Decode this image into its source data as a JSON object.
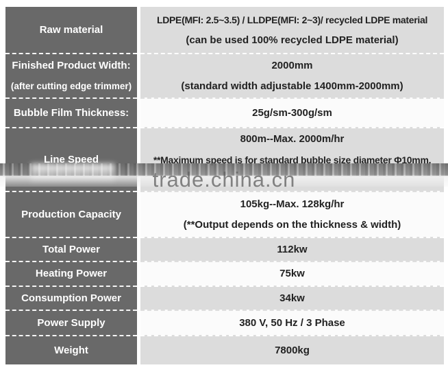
{
  "table": {
    "rows": [
      {
        "label": [
          "Raw material"
        ],
        "value": [
          "LDPE(MFI: 2.5~3.5) / LLDPE(MFI: 2~3)/ recycled LDPE material",
          "(can be used 100% recycled LDPE material)"
        ]
      },
      {
        "label": [
          "Finished Product Width:",
          "(after cutting edge trimmer)"
        ],
        "value": [
          "2000mm",
          "(standard width adjustable 1400mm-2000mm)"
        ]
      },
      {
        "label": [
          "Bubble Film Thickness:"
        ],
        "value": [
          "25g/sm-300g/sm"
        ]
      },
      {
        "label": [
          "Line Speed"
        ],
        "value": [
          "800m--Max. 2000m/hr",
          "**Maximum speed is for standard bubble size diameter Φ10mm."
        ]
      },
      {
        "label": [
          "Production Capacity"
        ],
        "value": [
          "105kg--Max. 128kg/hr",
          "(**Output depends on the thickness & width)"
        ]
      },
      {
        "label": [
          "Total Power"
        ],
        "value": [
          "112kw"
        ]
      },
      {
        "label": [
          "Heating Power"
        ],
        "value": [
          "75kw"
        ]
      },
      {
        "label": [
          "Consumption Power"
        ],
        "value": [
          "34kw"
        ]
      },
      {
        "label": [
          "Power Supply"
        ],
        "value": [
          "380 V, 50 Hz / 3 Phase"
        ]
      },
      {
        "label": [
          "Weight"
        ],
        "value": [
          "7800kg"
        ]
      }
    ]
  },
  "watermark": {
    "text": "trade.china.cn"
  },
  "colors": {
    "label_column_bg": "#696969",
    "row_shaded_bg": "#dcdcdc",
    "row_plain_bg": "#fbfbfb",
    "label_text": "#ffffff",
    "value_text": "#222222",
    "watermark_text": "#5f5f5f"
  }
}
